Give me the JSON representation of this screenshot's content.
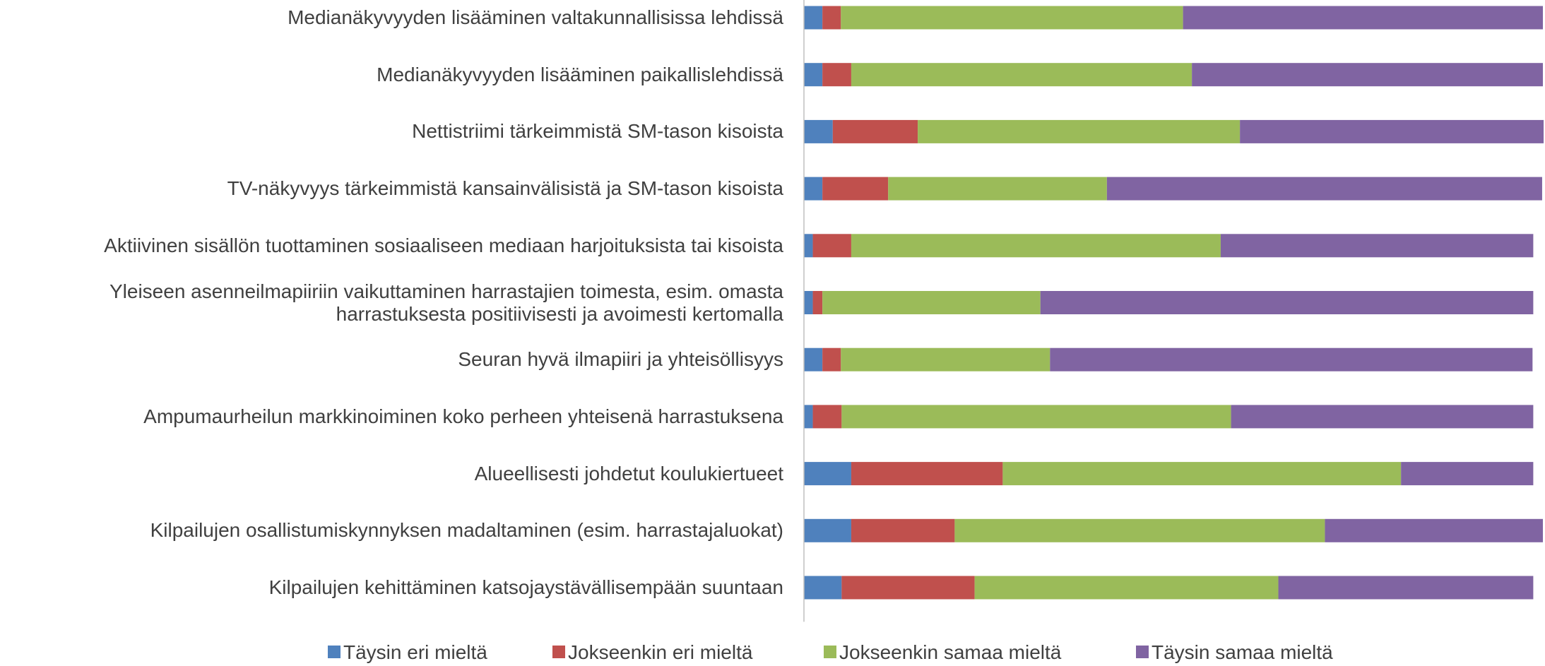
{
  "chart_data": {
    "type": "stacked-bar-horizontal",
    "categories": [
      "Medianäkyvyyden lisääminen valtakunnallisissa lehdissä",
      "Medianäkyvyyden lisääminen paikallislehdissä",
      "Nettistriimi tärkeimmistä SM-tason kisoista",
      "TV-näkyvyys tärkeimmistä kansainvälisistä ja SM-tason kisoista",
      "Aktiivinen sisällön tuottaminen sosiaaliseen mediaan harjoituksista tai kisoista",
      "Yleiseen asenneilmapiiriin vaikuttaminen harrastajien toimesta, esim. omasta\nharrastuksesta positiivisesti ja avoimesti kertomalla",
      "Seuran hyvä ilmapiiri ja yhteisöllisyys",
      "Ampumaurheilun markkinoiminen koko perheen yhteisenä harrastuksena",
      "Alueellisesti johdetut koulukiertueet",
      "Kilpailujen osallistumiskynnyksen madaltaminen (esim. harrastajaluokat)",
      "Kilpailujen kehittäminen katsojaystävällisempään suuntaan"
    ],
    "series": [
      {
        "name": "Täysin eri mieltä",
        "color": "#4f81bd",
        "values": [
          2.5,
          2.5,
          3.9,
          2.5,
          1.2,
          1.2,
          2.5,
          1.2,
          6.4,
          6.4,
          5.1
        ]
      },
      {
        "name": "Jokseenkin eri mieltä",
        "color": "#c0504d",
        "values": [
          2.5,
          3.9,
          11.5,
          8.9,
          5.2,
          1.3,
          2.5,
          3.9,
          20.5,
          14.0,
          18.0
        ]
      },
      {
        "name": "Jokseenkin samaa mieltä",
        "color": "#9bbb59",
        "values": [
          46.3,
          46.1,
          43.6,
          29.6,
          50.0,
          29.5,
          28.3,
          52.7,
          53.9,
          50.1,
          41.1
        ]
      },
      {
        "name": "Täysin samaa mieltä",
        "color": "#8064a2",
        "values": [
          48.7,
          47.5,
          41.1,
          58.9,
          42.3,
          66.7,
          65.3,
          40.9,
          17.9,
          29.5,
          34.5
        ]
      }
    ],
    "xlim": [
      0,
      100
    ],
    "legend": "bottom"
  }
}
